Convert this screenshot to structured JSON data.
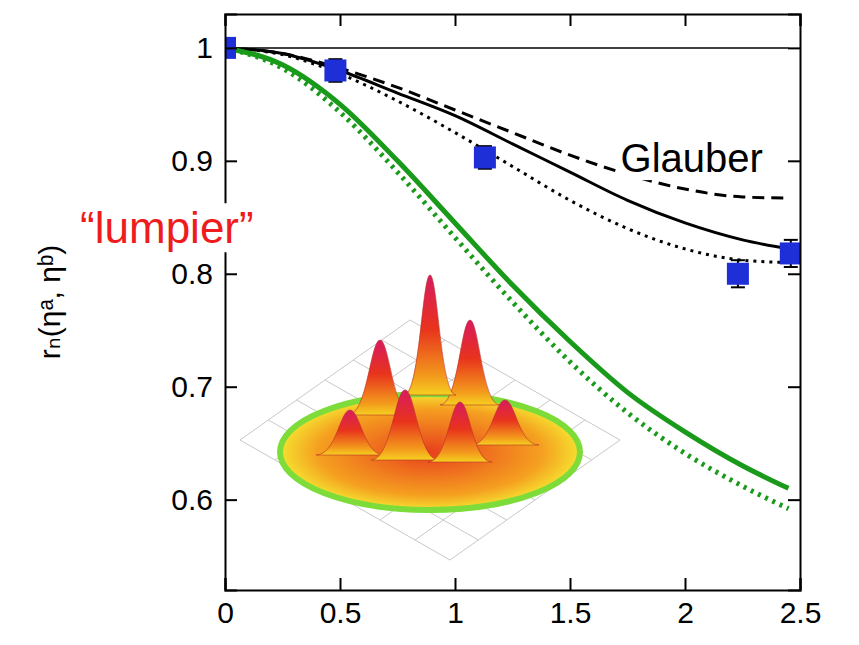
{
  "chart_data": {
    "type": "line",
    "y_label": "rₙ(ηᵃ, ηᵇ)",
    "xlim": [
      0,
      2.5
    ],
    "xticks": [
      0,
      0.5,
      1,
      1.5,
      2,
      2.5
    ],
    "ylim": [
      0.52,
      1.03
    ],
    "yticks": [
      0.6,
      0.7,
      0.8,
      0.9,
      1
    ],
    "series": [
      {
        "type": "line",
        "color": "#000000",
        "line_style": "solid",
        "x": [
          0,
          2.45
        ],
        "values": [
          1,
          1
        ]
      },
      {
        "type": "line",
        "color": "#000000",
        "line_style": "solid",
        "x": [
          0,
          0.25,
          0.5,
          0.75,
          1,
          1.25,
          1.5,
          1.75,
          2,
          2.25,
          2.45
        ],
        "values": [
          1,
          0.995,
          0.98,
          0.96,
          0.94,
          0.915,
          0.89,
          0.865,
          0.845,
          0.83,
          0.822
        ]
      },
      {
        "type": "line",
        "color": "#000000",
        "line_style": "dashed",
        "x": [
          0,
          0.25,
          0.5,
          0.75,
          1,
          1.25,
          1.5,
          1.75,
          2,
          2.25,
          2.45
        ],
        "values": [
          1,
          0.995,
          0.982,
          0.965,
          0.945,
          0.925,
          0.905,
          0.888,
          0.875,
          0.868,
          0.867
        ]
      },
      {
        "type": "line",
        "color": "#000000",
        "line_style": "dotted",
        "x": [
          0,
          0.25,
          0.5,
          0.75,
          1,
          1.25,
          1.5,
          1.75,
          2,
          2.25,
          2.45
        ],
        "values": [
          1,
          0.994,
          0.977,
          0.953,
          0.925,
          0.895,
          0.865,
          0.84,
          0.822,
          0.812,
          0.81
        ]
      },
      {
        "type": "line",
        "color": "#1a9a1a",
        "line_style": "solid",
        "x": [
          0,
          0.25,
          0.5,
          0.75,
          1,
          1.25,
          1.5,
          1.75,
          2,
          2.25,
          2.45
        ],
        "values": [
          1,
          0.985,
          0.95,
          0.9,
          0.845,
          0.79,
          0.74,
          0.695,
          0.66,
          0.63,
          0.61
        ]
      },
      {
        "type": "line",
        "color": "#1a9a1a",
        "line_style": "dotted",
        "x": [
          0,
          0.25,
          0.5,
          0.75,
          1,
          1.25,
          1.5,
          1.75,
          2,
          2.25,
          2.45
        ],
        "values": [
          1,
          0.982,
          0.943,
          0.89,
          0.832,
          0.775,
          0.722,
          0.677,
          0.641,
          0.612,
          0.592
        ]
      },
      {
        "type": "scatter",
        "color": "#1f2fd8",
        "marker": "square",
        "x": [
          0,
          0.48,
          1.13,
          2.23,
          2.46
        ],
        "values": [
          1,
          0.98,
          0.903,
          0.8,
          0.818
        ],
        "errors": [
          0.003,
          0.01,
          0.01,
          0.012,
          0.012
        ]
      }
    ],
    "annotations": [
      {
        "text": "Glauber",
        "x": 1.72,
        "y": 0.89,
        "color": "#000000"
      },
      {
        "text": "“lumpier”",
        "x": -0.63,
        "y": 0.827,
        "color": "#ee1c1c"
      }
    ]
  }
}
